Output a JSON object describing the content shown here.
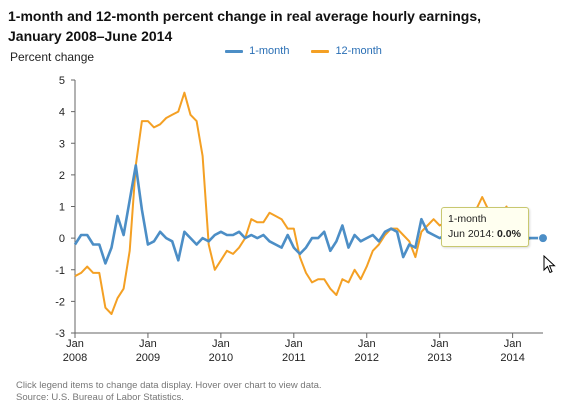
{
  "title": {
    "line1": "1-month and 12-month percent change in real average hourly earnings,",
    "line2": "January 2008–June 2014"
  },
  "legend": {
    "items": [
      {
        "label": "1-month",
        "color": "#4c8ec6"
      },
      {
        "label": "12-month",
        "color": "#f4a024"
      }
    ]
  },
  "ylabel": "Percent change",
  "tooltip": {
    "series": "1-month",
    "date": "Jun 2014:",
    "value": "0.0%"
  },
  "footer": {
    "note": "Click legend items to change data display. Hover over chart to view data.",
    "source": "Source: U.S. Bureau of Labor Statistics."
  },
  "colors": {
    "one_month": "#4c8ec6",
    "twelve_month": "#f4a024",
    "axis": "#666666",
    "grid": "#dddddd"
  },
  "chart_data": {
    "type": "line",
    "x_start": "2008-01",
    "x_end": "2014-06",
    "ylim": [
      -3,
      5
    ],
    "yticks": [
      -3,
      -2,
      -1,
      0,
      1,
      2,
      3,
      4,
      5
    ],
    "xticks": [
      {
        "label": "Jan",
        "year": "2008",
        "month_index": 0
      },
      {
        "label": "Jan",
        "year": "2009",
        "month_index": 12
      },
      {
        "label": "Jan",
        "year": "2010",
        "month_index": 24
      },
      {
        "label": "Jan",
        "year": "2011",
        "month_index": 36
      },
      {
        "label": "Jan",
        "year": "2012",
        "month_index": 48
      },
      {
        "label": "Jan",
        "year": "2013",
        "month_index": 60
      },
      {
        "label": "Jan",
        "year": "2014",
        "month_index": 72
      }
    ],
    "series": [
      {
        "name": "1-month",
        "values": [
          -0.2,
          0.1,
          0.1,
          -0.2,
          -0.2,
          -0.8,
          -0.3,
          0.7,
          0.1,
          1.2,
          2.3,
          0.9,
          -0.2,
          -0.1,
          0.2,
          0.0,
          -0.1,
          -0.7,
          0.2,
          0.0,
          -0.2,
          0.0,
          -0.1,
          0.1,
          0.2,
          0.1,
          0.1,
          0.2,
          0.0,
          0.1,
          0.0,
          0.1,
          -0.1,
          -0.2,
          -0.3,
          0.1,
          -0.3,
          -0.5,
          -0.3,
          0.0,
          0.0,
          0.2,
          -0.4,
          -0.1,
          0.4,
          -0.3,
          0.1,
          -0.1,
          0.0,
          0.1,
          -0.1,
          0.2,
          0.3,
          0.2,
          -0.6,
          -0.2,
          -0.3,
          0.6,
          0.2,
          0.1,
          0.0,
          0.1,
          0.2,
          0.1,
          0.0,
          0.1,
          0.0,
          0.0,
          -0.1,
          0.1,
          0.0,
          0.0,
          0.0,
          0.0,
          0.0,
          0.0,
          0.0,
          0.0
        ]
      },
      {
        "name": "12-month",
        "values": [
          -1.2,
          -1.1,
          -0.9,
          -1.1,
          -1.1,
          -2.2,
          -2.4,
          -1.9,
          -1.6,
          -0.4,
          2.3,
          3.7,
          3.7,
          3.5,
          3.6,
          3.8,
          3.9,
          4.0,
          4.6,
          3.9,
          3.7,
          2.6,
          -0.2,
          -1.0,
          -0.7,
          -0.4,
          -0.5,
          -0.3,
          0.0,
          0.6,
          0.5,
          0.5,
          0.8,
          0.7,
          0.6,
          0.3,
          0.3,
          -0.6,
          -1.1,
          -1.4,
          -1.3,
          -1.3,
          -1.6,
          -1.8,
          -1.3,
          -1.4,
          -1.0,
          -1.3,
          -0.9,
          -0.4,
          -0.2,
          0.1,
          0.3,
          0.3,
          0.1,
          -0.1,
          -0.6,
          0.2,
          0.4,
          0.6,
          0.4,
          0.5,
          0.2,
          0.3,
          0.6,
          0.6,
          0.9,
          1.3,
          0.9,
          0.8,
          0.7,
          1.0,
          0.2,
          0.1,
          -0.1,
          0.0,
          0.0,
          0.0
        ]
      }
    ]
  }
}
